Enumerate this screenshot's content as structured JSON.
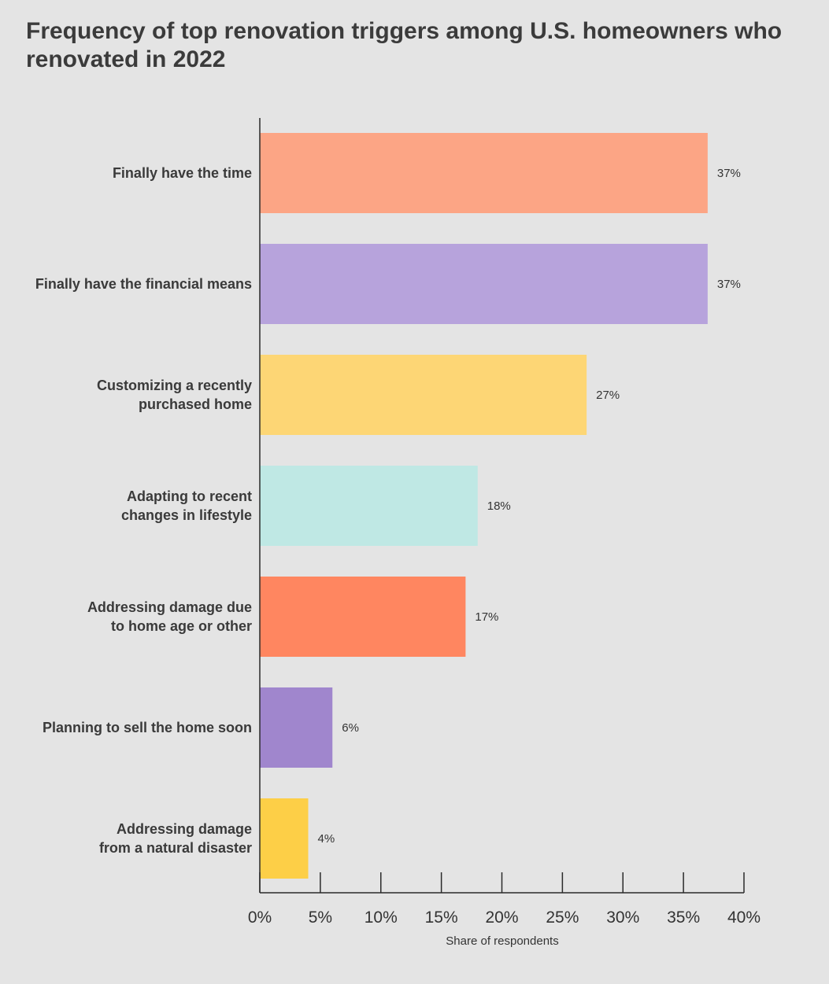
{
  "chart_data": {
    "type": "bar",
    "orientation": "horizontal",
    "title": "Frequency of top renovation triggers among U.S. homeowners who renovated in 2022",
    "xlabel": "Share of respondents",
    "ylabel": "",
    "xlim": [
      0,
      40
    ],
    "x_ticks": [
      0,
      5,
      10,
      15,
      20,
      25,
      30,
      35,
      40
    ],
    "x_tick_labels": [
      "0%",
      "5%",
      "10%",
      "15%",
      "20%",
      "25%",
      "30%",
      "35%",
      "40%"
    ],
    "grid": false,
    "legend": "none",
    "categories": [
      [
        "Finally have the time"
      ],
      [
        "Finally have the financial means"
      ],
      [
        "Customizing a recently",
        "purchased home"
      ],
      [
        "Adapting to recent",
        "changes in lifestyle"
      ],
      [
        "Addressing damage due",
        "to home age or other"
      ],
      [
        "Planning to sell the home soon"
      ],
      [
        "Addressing damage",
        "from a natural disaster"
      ]
    ],
    "values": [
      37,
      37,
      27,
      18,
      17,
      6,
      4
    ],
    "value_labels": [
      "37%",
      "37%",
      "27%",
      "18%",
      "17%",
      "6%",
      "4%"
    ],
    "colors": [
      "#fca585",
      "#b7a3dc",
      "#fdd675",
      "#bfe8e4",
      "#ff8660",
      "#a086cd",
      "#fdcf47"
    ]
  }
}
